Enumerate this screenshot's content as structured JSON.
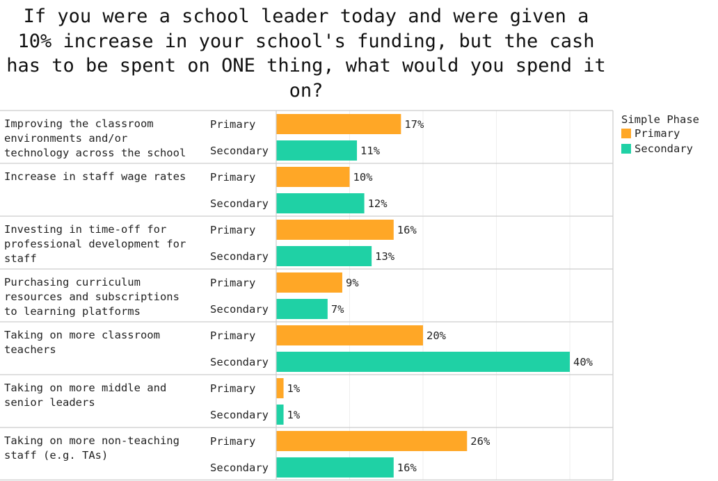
{
  "chart_data": {
    "type": "bar",
    "orientation": "horizontal",
    "title": "If you were a school leader today and were given a 10% increase in your school's funding, but the cash has to be spent on ONE thing, what would you spend it on?",
    "title_lines": [
      "If you were a school leader today and were given a",
      "10% increase in your school's funding, but the cash",
      "has to be spent on ONE thing, what would you spend it",
      "on?"
    ],
    "categories": [
      {
        "lines": [
          "Improving the classroom",
          "environments and/or",
          "technology across the school"
        ]
      },
      {
        "lines": [
          "Increase in staff wage rates"
        ]
      },
      {
        "lines": [
          "Investing in time-off for",
          "professional development for",
          "staff"
        ]
      },
      {
        "lines": [
          "Purchasing curriculum",
          "resources and subscriptions",
          "to learning platforms"
        ]
      },
      {
        "lines": [
          "Taking on more classroom",
          "teachers"
        ]
      },
      {
        "lines": [
          "Taking on more middle and",
          "senior leaders"
        ]
      },
      {
        "lines": [
          "Taking on more non-teaching",
          "staff (e.g. TAs)"
        ]
      }
    ],
    "series": [
      {
        "name": "Primary",
        "color": "#FFA726",
        "values": [
          17,
          10,
          16,
          9,
          20,
          1,
          26
        ],
        "labels": [
          "17%",
          "10%",
          "16%",
          "9%",
          "20%",
          "1%",
          "26%"
        ]
      },
      {
        "name": "Secondary",
        "color": "#1FD1A5",
        "values": [
          11,
          12,
          13,
          7,
          40,
          1,
          16
        ],
        "labels": [
          "11%",
          "12%",
          "13%",
          "7%",
          "40%",
          "1%",
          "16%"
        ]
      }
    ],
    "xlim": [
      0,
      45.6
    ],
    "grid": true,
    "legend": {
      "title": "Simple Phase",
      "placement": "right"
    }
  }
}
